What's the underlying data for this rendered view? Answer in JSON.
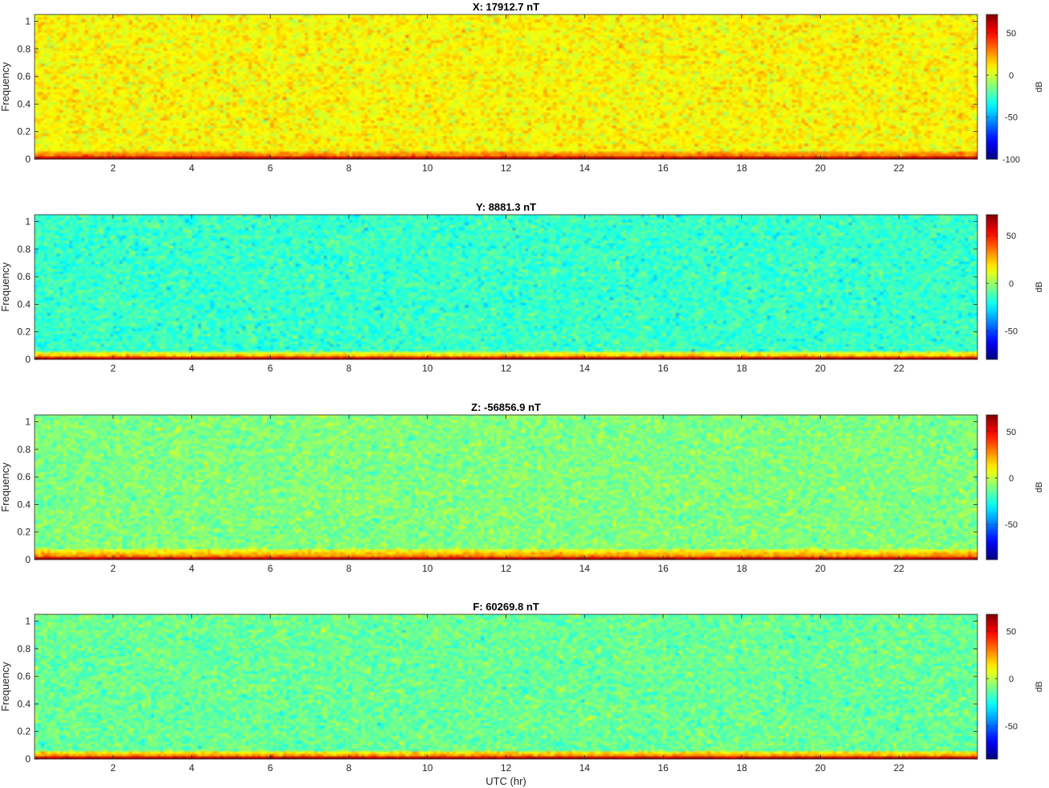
{
  "chart_data": [
    {
      "type": "heatmap",
      "title": "X: 17912.7 nT",
      "xlabel": "",
      "ylabel": "Frequency",
      "xlim": [
        0,
        24
      ],
      "ylim": [
        0,
        1.05
      ],
      "x_ticks": [
        2,
        4,
        6,
        8,
        10,
        12,
        14,
        16,
        18,
        20,
        22
      ],
      "y_ticks": [
        0,
        0.2,
        0.4,
        0.6,
        0.8,
        1
      ],
      "colorbar": {
        "label": "dB",
        "clim": [
          -100,
          72
        ],
        "ticks": [
          -100,
          -50,
          0,
          50
        ],
        "colormap": "jet"
      },
      "background_level_db": 8,
      "noise_db": 12,
      "low_freq_band": {
        "level_db": 40,
        "max_freq": 0.06
      }
    },
    {
      "type": "heatmap",
      "title": "Y: 8881.3 nT",
      "xlabel": "",
      "ylabel": "Frequency",
      "xlim": [
        0,
        24
      ],
      "ylim": [
        0,
        1.05
      ],
      "x_ticks": [
        2,
        4,
        6,
        8,
        10,
        12,
        14,
        16,
        18,
        20,
        22
      ],
      "y_ticks": [
        0,
        0.2,
        0.4,
        0.6,
        0.8,
        1
      ],
      "colorbar": {
        "label": "dB",
        "clim": [
          -80,
          72
        ],
        "ticks": [
          -50,
          0,
          50
        ],
        "colormap": "jet"
      },
      "background_level_db": -15,
      "noise_db": 11,
      "low_freq_band": {
        "level_db": 40,
        "max_freq": 0.06
      }
    },
    {
      "type": "heatmap",
      "title": "Z: -56856.9 nT",
      "xlabel": "",
      "ylabel": "Frequency",
      "xlim": [
        0,
        24
      ],
      "ylim": [
        0,
        1.05
      ],
      "x_ticks": [
        2,
        4,
        6,
        8,
        10,
        12,
        14,
        16,
        18,
        20,
        22
      ],
      "y_ticks": [
        0,
        0.2,
        0.4,
        0.6,
        0.8,
        1
      ],
      "colorbar": {
        "label": "dB",
        "clim": [
          -88,
          68
        ],
        "ticks": [
          -50,
          0,
          50
        ],
        "colormap": "jet"
      },
      "background_level_db": -10,
      "noise_db": 11,
      "low_freq_band": {
        "level_db": 40,
        "max_freq": 0.07
      }
    },
    {
      "type": "heatmap",
      "title": "F: 60269.8 nT",
      "xlabel": "UTC (hr)",
      "ylabel": "Frequency",
      "xlim": [
        0,
        24
      ],
      "ylim": [
        0,
        1.05
      ],
      "x_ticks": [
        2,
        4,
        6,
        8,
        10,
        12,
        14,
        16,
        18,
        20,
        22
      ],
      "y_ticks": [
        0,
        0.2,
        0.4,
        0.6,
        0.8,
        1
      ],
      "colorbar": {
        "label": "dB",
        "clim": [
          -85,
          68
        ],
        "ticks": [
          -50,
          0,
          50
        ],
        "colormap": "jet"
      },
      "background_level_db": -12,
      "noise_db": 11,
      "low_freq_band": {
        "level_db": 40,
        "max_freq": 0.06
      }
    }
  ]
}
